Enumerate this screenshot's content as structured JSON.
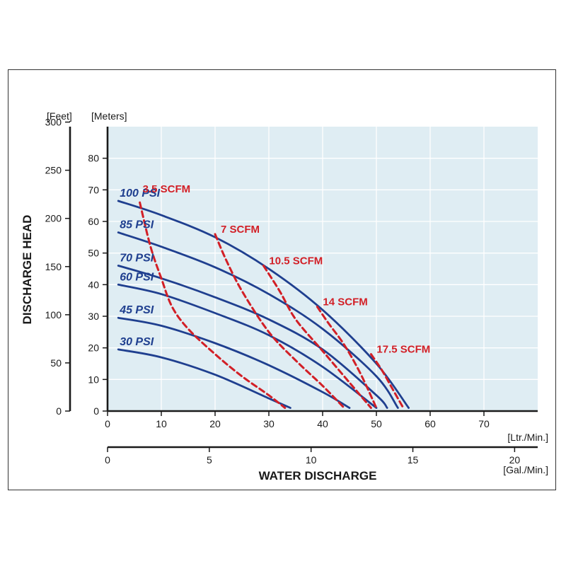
{
  "chart_data": {
    "type": "line",
    "xlabel": "WATER DISCHARGE",
    "ylabel": "DISCHARGE HEAD",
    "x_unit_primary": "[Ltr./Min.]",
    "x_unit_secondary": "[Gal./Min.]",
    "y_unit_left": "[Feet]",
    "y_unit_right": "[Meters]",
    "x_primary_ticks": [
      "0",
      "10",
      "20",
      "30",
      "40",
      "50",
      "60",
      "70"
    ],
    "x_secondary_ticks": [
      "0",
      "5",
      "10",
      "15",
      "20"
    ],
    "y_feet_ticks": [
      "0",
      "50",
      "100",
      "150",
      "200",
      "250",
      "300"
    ],
    "y_meter_ticks": [
      "0",
      "10",
      "20",
      "30",
      "40",
      "50",
      "60",
      "70",
      "80"
    ],
    "xlim": [
      0,
      80
    ],
    "ylim_meters": [
      0,
      90
    ],
    "grid": true,
    "colors": {
      "background": "#dfedf3",
      "grid": "#ffffff",
      "psi_curve": "#1f3f8f",
      "scfm_curve": "#d21f26"
    },
    "series": [
      {
        "name": "100 PSI",
        "kind": "pressure",
        "x": [
          2,
          10,
          20,
          30,
          40,
          50,
          56
        ],
        "y": [
          66.5,
          62,
          55,
          45,
          32,
          15,
          1
        ]
      },
      {
        "name": "85 PSI",
        "kind": "pressure",
        "x": [
          2,
          10,
          20,
          30,
          40,
          50,
          54
        ],
        "y": [
          56.5,
          52,
          45.5,
          37,
          26,
          11,
          1
        ]
      },
      {
        "name": "70 PSI",
        "kind": "pressure",
        "x": [
          2,
          10,
          20,
          30,
          40,
          50,
          52
        ],
        "y": [
          46,
          42,
          36,
          29,
          19.5,
          5,
          1
        ]
      },
      {
        "name": "60 PSI",
        "kind": "pressure",
        "x": [
          2,
          10,
          20,
          30,
          40,
          50
        ],
        "y": [
          40,
          37,
          31,
          24,
          14,
          1
        ]
      },
      {
        "name": "45 PSI",
        "kind": "pressure",
        "x": [
          2,
          10,
          20,
          30,
          40,
          45
        ],
        "y": [
          29.5,
          27,
          21.5,
          14.5,
          6,
          1
        ]
      },
      {
        "name": "30 PSI",
        "kind": "pressure",
        "x": [
          2,
          10,
          20,
          30,
          34
        ],
        "y": [
          19.5,
          17,
          11.5,
          4,
          1
        ]
      },
      {
        "name": "3.5 SCFM",
        "kind": "air",
        "x": [
          6,
          8,
          10,
          12,
          15,
          20,
          25,
          30,
          33
        ],
        "y": [
          66,
          52,
          42,
          33,
          26,
          18,
          11,
          5,
          1
        ]
      },
      {
        "name": "7 SCFM",
        "kind": "air",
        "x": [
          20,
          22,
          25,
          30,
          35,
          40,
          44
        ],
        "y": [
          56,
          48,
          38,
          25,
          16,
          8,
          1
        ]
      },
      {
        "name": "10.5 SCFM",
        "kind": "air",
        "x": [
          29,
          32,
          35,
          40,
          45,
          49
        ],
        "y": [
          46,
          38,
          29,
          19,
          9,
          1
        ]
      },
      {
        "name": "14 SCFM",
        "kind": "air",
        "x": [
          39,
          41,
          44,
          47,
          50
        ],
        "y": [
          33,
          28,
          21,
          12,
          1
        ]
      },
      {
        "name": "17.5 SCFM",
        "kind": "air",
        "x": [
          49,
          51,
          53,
          55
        ],
        "y": [
          18,
          13,
          7,
          1
        ]
      }
    ]
  }
}
